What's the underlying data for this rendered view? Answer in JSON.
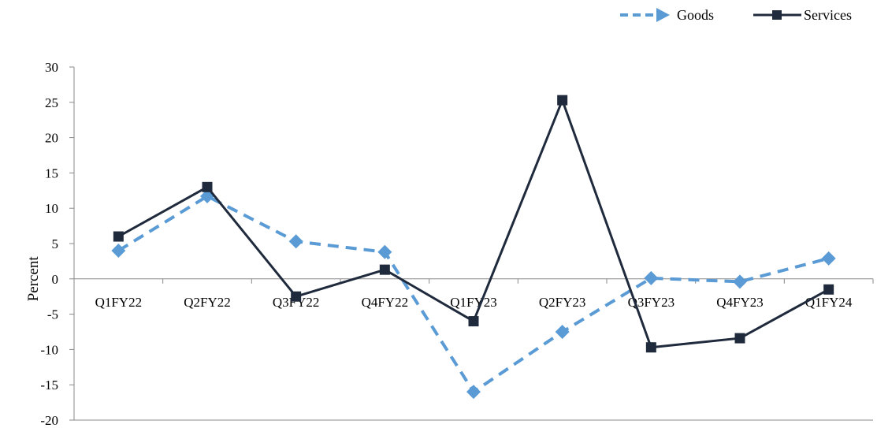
{
  "chart_data": {
    "type": "line",
    "title": "",
    "xlabel": "",
    "ylabel": "Percent",
    "categories": [
      "Q1FY22",
      "Q2FY22",
      "Q3FY22",
      "Q4FY22",
      "Q1FY23",
      "Q2FY23",
      "Q3FY23",
      "Q4FY23",
      "Q1FY24"
    ],
    "ylim": [
      -20,
      30
    ],
    "yticks": [
      30,
      25,
      20,
      15,
      10,
      5,
      0,
      -5,
      -10,
      -15,
      -20
    ],
    "grid": false,
    "legend_position": "top-right",
    "series": [
      {
        "name": "Goods",
        "values": [
          4.0,
          11.7,
          5.3,
          3.8,
          -16.0,
          -7.5,
          0.1,
          -0.4,
          2.9
        ],
        "color": "#5b9bd5",
        "line_style": "dashed",
        "marker": "diamond"
      },
      {
        "name": "Services",
        "values": [
          6.0,
          13.0,
          -2.5,
          1.3,
          -6.0,
          25.3,
          -9.7,
          -8.4,
          -1.5
        ],
        "color": "#1f2a3c",
        "line_style": "solid",
        "marker": "square"
      }
    ]
  }
}
